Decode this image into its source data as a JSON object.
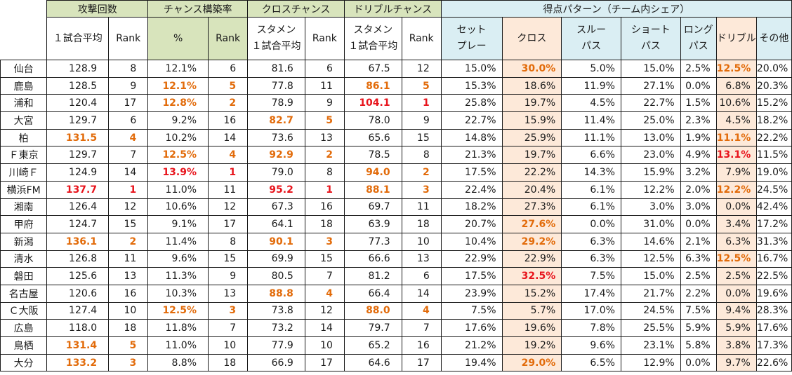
{
  "groups": {
    "attack": "攻撃回数",
    "chance": "チャンス構築率",
    "cross": "クロスチャンス",
    "dribble": "ドリブルチャンス",
    "pattern": "得点パターン（チーム内シェア）"
  },
  "subheaders": {
    "attack_avg": "１試合平均",
    "attack_rank": "Rank",
    "chance_pct": "%",
    "chance_rank": "Rank",
    "cross_avg_1": "スタメン",
    "cross_avg_2": "１試合平均",
    "cross_rank": "Rank",
    "dribble_avg_1": "スタメン",
    "dribble_avg_2": "１試合平均",
    "dribble_rank": "Rank",
    "setplay_1": "セット",
    "setplay_2": "プレー",
    "cross": "クロス",
    "through_1": "スルー",
    "through_2": "パス",
    "short_1": "ショート",
    "short_2": "パス",
    "long_1": "ロング",
    "long_2": "パス",
    "dribble": "ドリブル",
    "other": "その他"
  },
  "colors": {
    "green_header": "#d8e4bc",
    "blue_header": "#daeef3",
    "peach_column": "#fde9d9",
    "highlight_orange": "#e26b0a",
    "highlight_red": "#e8141c"
  },
  "rows": [
    {
      "team": "仙台",
      "cells": [
        "128.9",
        "8",
        "12.1%",
        "6",
        "81.6",
        "6",
        "67.5",
        "12",
        "15.0%",
        "30.0%",
        "5.0%",
        "15.0%",
        "2.5%",
        "12.5%",
        "20.0%"
      ],
      "hl": {
        "9": "o",
        "13": "o"
      }
    },
    {
      "team": "鹿島",
      "cells": [
        "128.5",
        "9",
        "12.1%",
        "5",
        "77.8",
        "11",
        "86.1",
        "5",
        "15.3%",
        "18.6%",
        "11.9%",
        "27.1%",
        "0.0%",
        "6.8%",
        "20.3%"
      ],
      "hl": {
        "2": "o",
        "3": "o",
        "6": "o",
        "7": "o"
      }
    },
    {
      "team": "浦和",
      "cells": [
        "120.4",
        "17",
        "12.8%",
        "2",
        "78.9",
        "9",
        "104.1",
        "1",
        "25.8%",
        "19.7%",
        "4.5%",
        "22.7%",
        "1.5%",
        "10.6%",
        "15.2%"
      ],
      "hl": {
        "2": "o",
        "3": "o",
        "6": "r",
        "7": "r"
      }
    },
    {
      "team": "大宮",
      "cells": [
        "129.7",
        "6",
        "9.2%",
        "16",
        "82.7",
        "5",
        "78.0",
        "9",
        "22.7%",
        "15.9%",
        "11.4%",
        "25.0%",
        "2.3%",
        "4.5%",
        "18.2%"
      ],
      "hl": {
        "4": "o",
        "5": "o"
      }
    },
    {
      "team": "柏",
      "cells": [
        "131.5",
        "4",
        "10.2%",
        "14",
        "73.6",
        "13",
        "65.6",
        "15",
        "14.8%",
        "25.9%",
        "11.1%",
        "13.0%",
        "1.9%",
        "11.1%",
        "22.2%"
      ],
      "hl": {
        "0": "o",
        "1": "o",
        "13": "o"
      }
    },
    {
      "team": "Ｆ東京",
      "cells": [
        "129.7",
        "7",
        "12.5%",
        "4",
        "92.9",
        "2",
        "78.5",
        "8",
        "21.3%",
        "19.7%",
        "6.6%",
        "23.0%",
        "4.9%",
        "13.1%",
        "11.5%"
      ],
      "hl": {
        "2": "o",
        "3": "o",
        "4": "o",
        "5": "o",
        "13": "r"
      }
    },
    {
      "team": "川崎Ｆ",
      "cells": [
        "124.9",
        "14",
        "13.9%",
        "1",
        "79.0",
        "8",
        "94.0",
        "2",
        "17.5%",
        "22.2%",
        "14.3%",
        "15.9%",
        "3.2%",
        "7.9%",
        "19.0%"
      ],
      "hl": {
        "2": "r",
        "3": "r",
        "6": "o",
        "7": "o"
      }
    },
    {
      "team": "横浜FM",
      "cells": [
        "137.7",
        "1",
        "11.0%",
        "11",
        "95.2",
        "1",
        "88.1",
        "3",
        "22.4%",
        "20.4%",
        "6.1%",
        "12.2%",
        "2.0%",
        "12.2%",
        "24.5%"
      ],
      "hl": {
        "0": "r",
        "1": "r",
        "4": "r",
        "5": "r",
        "6": "o",
        "7": "o",
        "13": "o"
      }
    },
    {
      "team": "湘南",
      "cells": [
        "126.4",
        "12",
        "10.6%",
        "12",
        "67.3",
        "16",
        "69.7",
        "11",
        "18.2%",
        "27.3%",
        "6.1%",
        "3.0%",
        "3.0%",
        "0.0%",
        "42.4%"
      ],
      "hl": {}
    },
    {
      "team": "甲府",
      "cells": [
        "124.7",
        "15",
        "9.1%",
        "17",
        "64.1",
        "18",
        "63.9",
        "18",
        "20.7%",
        "27.6%",
        "0.0%",
        "31.0%",
        "0.0%",
        "3.4%",
        "17.2%"
      ],
      "hl": {
        "9": "o"
      }
    },
    {
      "team": "新潟",
      "cells": [
        "136.1",
        "2",
        "11.4%",
        "8",
        "90.1",
        "3",
        "77.3",
        "10",
        "10.4%",
        "29.2%",
        "6.3%",
        "14.6%",
        "2.1%",
        "6.3%",
        "31.3%"
      ],
      "hl": {
        "0": "o",
        "1": "o",
        "4": "o",
        "5": "o",
        "9": "o"
      }
    },
    {
      "team": "清水",
      "cells": [
        "126.8",
        "11",
        "9.6%",
        "15",
        "69.9",
        "15",
        "66.6",
        "13",
        "22.9%",
        "22.9%",
        "6.3%",
        "12.5%",
        "6.3%",
        "12.5%",
        "16.7%"
      ],
      "hl": {
        "13": "o"
      }
    },
    {
      "team": "磐田",
      "cells": [
        "125.6",
        "13",
        "11.3%",
        "9",
        "80.5",
        "7",
        "81.2",
        "6",
        "17.5%",
        "32.5%",
        "7.5%",
        "15.0%",
        "2.5%",
        "2.5%",
        "22.5%"
      ],
      "hl": {
        "9": "r"
      }
    },
    {
      "team": "名古屋",
      "cells": [
        "120.6",
        "16",
        "10.3%",
        "13",
        "88.8",
        "4",
        "66.4",
        "14",
        "23.9%",
        "15.2%",
        "17.4%",
        "21.7%",
        "2.2%",
        "0.0%",
        "19.6%"
      ],
      "hl": {
        "4": "o",
        "5": "o"
      }
    },
    {
      "team": "Ｃ大阪",
      "cells": [
        "127.4",
        "10",
        "12.5%",
        "3",
        "73.8",
        "12",
        "88.0",
        "4",
        "7.5%",
        "5.7%",
        "17.0%",
        "24.5%",
        "7.5%",
        "9.4%",
        "28.3%"
      ],
      "hl": {
        "2": "o",
        "3": "o",
        "6": "o",
        "7": "o"
      }
    },
    {
      "team": "広島",
      "cells": [
        "118.0",
        "18",
        "11.8%",
        "7",
        "73.2",
        "14",
        "79.7",
        "7",
        "17.6%",
        "19.6%",
        "7.8%",
        "25.5%",
        "5.9%",
        "5.9%",
        "17.6%"
      ],
      "hl": {}
    },
    {
      "team": "鳥栖",
      "cells": [
        "131.4",
        "5",
        "11.0%",
        "10",
        "77.9",
        "10",
        "65.2",
        "16",
        "21.2%",
        "19.2%",
        "9.6%",
        "23.1%",
        "5.8%",
        "3.8%",
        "17.3%"
      ],
      "hl": {
        "0": "o",
        "1": "o"
      }
    },
    {
      "team": "大分",
      "cells": [
        "133.2",
        "3",
        "8.8%",
        "18",
        "66.9",
        "17",
        "64.6",
        "17",
        "19.4%",
        "29.0%",
        "6.5%",
        "12.9%",
        "0.0%",
        "9.7%",
        "22.6%"
      ],
      "hl": {
        "0": "o",
        "1": "o",
        "9": "o"
      }
    }
  ]
}
